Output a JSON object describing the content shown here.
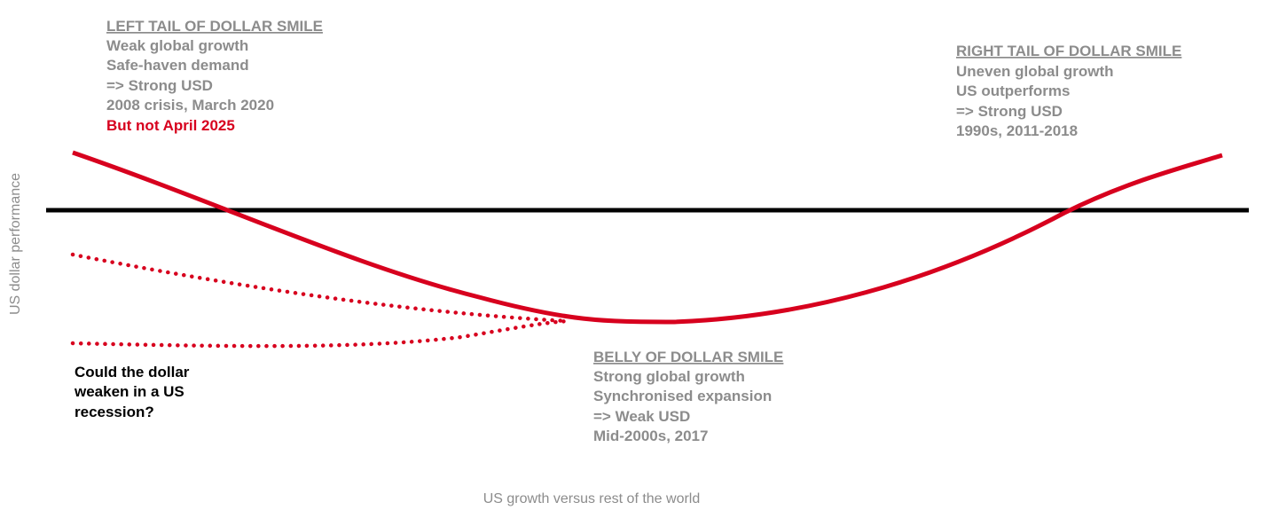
{
  "y_axis_label": "US dollar performance",
  "x_axis_label": "US growth versus rest of the world",
  "left_tail": {
    "heading": "LEFT TAIL OF DOLLAR SMILE",
    "lines": [
      "Weak global growth",
      "Safe-haven demand",
      "=> Strong USD",
      "2008 crisis, March 2020"
    ],
    "highlight": "But not April 2025"
  },
  "right_tail": {
    "heading": "RIGHT TAIL OF DOLLAR SMILE",
    "lines": [
      "Uneven global growth",
      "US outperforms",
      "=> Strong USD",
      "1990s, 2011-2018"
    ]
  },
  "belly": {
    "heading": "BELLY OF DOLLAR SMILE",
    "lines": [
      "Strong global growth",
      "Synchronised expansion",
      "=> Weak USD",
      "Mid-2000s, 2017"
    ]
  },
  "question": {
    "lines": [
      "Could the dollar",
      "weaken in a US",
      "recession?"
    ]
  }
}
